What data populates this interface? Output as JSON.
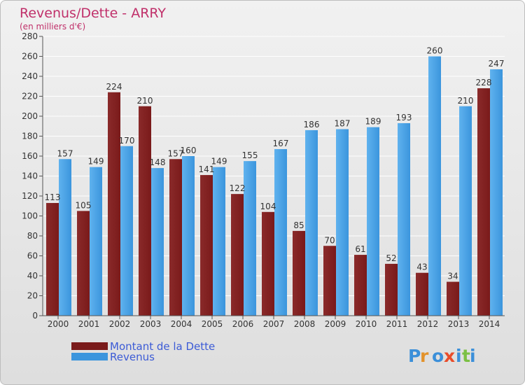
{
  "chart_data": {
    "type": "bar",
    "title": "Revenus/Dette - ARRY",
    "subtitle": "(en milliers d'€)",
    "categories": [
      "2000",
      "2001",
      "2002",
      "2003",
      "2004",
      "2005",
      "2006",
      "2007",
      "2008",
      "2009",
      "2010",
      "2011",
      "2012",
      "2013",
      "2014"
    ],
    "series": [
      {
        "name": "Montant de la Dette",
        "color": "#7a1a1a",
        "values": [
          113,
          105,
          224,
          210,
          157,
          141,
          122,
          104,
          85,
          70,
          61,
          52,
          43,
          34,
          228
        ]
      },
      {
        "name": "Revenus",
        "color": "#3b95dd",
        "values": [
          157,
          149,
          170,
          148,
          160,
          149,
          155,
          167,
          186,
          187,
          189,
          193,
          260,
          210,
          247
        ]
      }
    ],
    "ylim": [
      0,
      280
    ],
    "yticks": [
      0,
      20,
      40,
      60,
      80,
      100,
      120,
      140,
      160,
      180,
      200,
      220,
      240,
      260,
      280
    ],
    "grid": true,
    "legend_position": "bottom-left"
  },
  "brand": {
    "logo_text": "Proxiti"
  },
  "colors": {
    "title": "#c0306a",
    "legend_text": "#3c5bd6",
    "grid": "#ffffff",
    "axis_text": "#333333",
    "value_label": "#333333"
  }
}
